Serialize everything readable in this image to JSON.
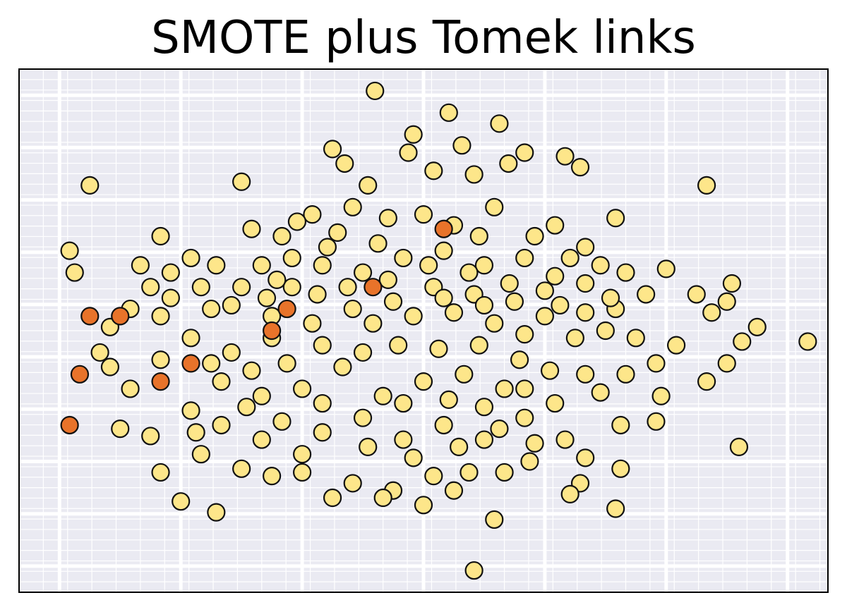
{
  "chart_data": {
    "type": "scatter",
    "title": "SMOTE plus Tomek links",
    "xlabel": "",
    "ylabel": "",
    "xlim": [
      -4.0,
      4.0
    ],
    "ylim": [
      -3.6,
      3.6
    ],
    "grid": true,
    "legend": "none",
    "colors": {
      "majority": "#fde68a",
      "minority": "#e8732a",
      "edge": "#111111",
      "background": "#eaeaf2",
      "grid_major": "#ffffff",
      "grid_minor": "#ffffff"
    },
    "series": [
      {
        "class": "majority",
        "points": [
          [
            -0.48,
            3.3
          ],
          [
            0.25,
            3.0
          ],
          [
            0.75,
            2.85
          ],
          [
            -0.1,
            2.7
          ],
          [
            0.38,
            2.55
          ],
          [
            -0.9,
            2.5
          ],
          [
            1.0,
            2.45
          ],
          [
            1.4,
            2.4
          ],
          [
            -0.78,
            2.3
          ],
          [
            -0.15,
            2.45
          ],
          [
            0.84,
            2.3
          ],
          [
            0.1,
            2.2
          ],
          [
            -0.55,
            2.0
          ],
          [
            0.5,
            2.15
          ],
          [
            1.55,
            2.25
          ],
          [
            -1.8,
            2.05
          ],
          [
            -3.3,
            2.0
          ],
          [
            2.8,
            2.0
          ],
          [
            -1.1,
            1.6
          ],
          [
            -1.4,
            1.3
          ],
          [
            -0.7,
            1.7
          ],
          [
            0.0,
            1.6
          ],
          [
            0.7,
            1.7
          ],
          [
            1.3,
            1.45
          ],
          [
            1.6,
            1.15
          ],
          [
            1.9,
            1.55
          ],
          [
            -2.6,
            1.3
          ],
          [
            -3.5,
            1.1
          ],
          [
            -3.45,
            0.8
          ],
          [
            -2.8,
            0.9
          ],
          [
            -2.7,
            0.6
          ],
          [
            -2.5,
            0.45
          ],
          [
            -2.9,
            0.3
          ],
          [
            -3.1,
            0.05
          ],
          [
            -2.6,
            0.2
          ],
          [
            -2.2,
            0.6
          ],
          [
            -1.9,
            0.35
          ],
          [
            -1.5,
            0.2
          ],
          [
            -1.3,
            0.6
          ],
          [
            -1.0,
            0.9
          ],
          [
            -0.6,
            0.8
          ],
          [
            -0.2,
            1.0
          ],
          [
            0.2,
            1.1
          ],
          [
            0.6,
            0.9
          ],
          [
            1.0,
            1.0
          ],
          [
            1.3,
            0.75
          ],
          [
            1.6,
            0.65
          ],
          [
            1.9,
            0.3
          ],
          [
            2.2,
            0.5
          ],
          [
            2.4,
            0.85
          ],
          [
            2.7,
            0.5
          ],
          [
            3.0,
            0.4
          ],
          [
            3.05,
            0.65
          ],
          [
            2.85,
            0.25
          ],
          [
            3.3,
            0.05
          ],
          [
            3.15,
            -0.15
          ],
          [
            3.0,
            -0.45
          ],
          [
            3.8,
            -0.15
          ],
          [
            2.5,
            -0.2
          ],
          [
            2.1,
            -0.1
          ],
          [
            1.8,
            0.0
          ],
          [
            1.5,
            -0.1
          ],
          [
            1.2,
            0.2
          ],
          [
            0.9,
            0.4
          ],
          [
            0.5,
            0.5
          ],
          [
            0.1,
            0.6
          ],
          [
            -0.3,
            0.4
          ],
          [
            -0.7,
            0.3
          ],
          [
            -1.1,
            0.1
          ],
          [
            -1.5,
            -0.1
          ],
          [
            -1.9,
            -0.3
          ],
          [
            -2.3,
            -0.1
          ],
          [
            -2.6,
            -0.4
          ],
          [
            -3.1,
            -0.5
          ],
          [
            -3.2,
            -0.3
          ],
          [
            -2.9,
            -0.8
          ],
          [
            -3.0,
            -1.35
          ],
          [
            -2.7,
            -1.45
          ],
          [
            -2.6,
            -1.95
          ],
          [
            -2.4,
            -2.35
          ],
          [
            -2.05,
            -2.5
          ],
          [
            -2.3,
            -1.1
          ],
          [
            -2.0,
            -1.3
          ],
          [
            -1.6,
            -1.5
          ],
          [
            -1.2,
            -1.7
          ],
          [
            -1.5,
            -2.0
          ],
          [
            -1.0,
            -1.4
          ],
          [
            -0.6,
            -1.2
          ],
          [
            -0.2,
            -1.5
          ],
          [
            0.2,
            -1.3
          ],
          [
            0.6,
            -1.5
          ],
          [
            1.0,
            -1.2
          ],
          [
            1.4,
            -1.5
          ],
          [
            1.6,
            -1.75
          ],
          [
            1.55,
            -2.1
          ],
          [
            1.95,
            -1.3
          ],
          [
            1.95,
            -1.9
          ],
          [
            2.35,
            -0.9
          ],
          [
            2.8,
            -0.7
          ],
          [
            2.3,
            -1.25
          ],
          [
            3.12,
            -1.6
          ],
          [
            1.45,
            -2.25
          ],
          [
            0.7,
            -2.6
          ],
          [
            1.9,
            -2.45
          ],
          [
            0.5,
            -3.3
          ],
          [
            -1.2,
            -1.95
          ],
          [
            -0.7,
            -2.1
          ],
          [
            -0.3,
            -2.2
          ],
          [
            0.1,
            -2.0
          ],
          [
            0.45,
            -1.95
          ],
          [
            1.05,
            -1.8
          ],
          [
            1.3,
            -1.0
          ],
          [
            0.8,
            -0.8
          ],
          [
            0.4,
            -0.6
          ],
          [
            0.0,
            -0.7
          ],
          [
            -0.4,
            -0.9
          ],
          [
            -0.8,
            -0.5
          ],
          [
            -1.2,
            -0.8
          ],
          [
            -1.6,
            -0.9
          ],
          [
            -2.0,
            -0.7
          ],
          [
            -1.8,
            -1.9
          ],
          [
            -2.2,
            -1.7
          ],
          [
            -0.9,
            -2.3
          ],
          [
            0.0,
            -2.4
          ],
          [
            0.3,
            -2.2
          ],
          [
            -0.4,
            -2.3
          ],
          [
            0.8,
            -1.95
          ],
          [
            1.1,
            -1.55
          ],
          [
            1.6,
            -0.6
          ],
          [
            2.0,
            -0.6
          ],
          [
            2.3,
            -0.45
          ],
          [
            1.75,
            -0.85
          ],
          [
            -1.3,
            1.0
          ],
          [
            -1.6,
            0.9
          ],
          [
            -2.05,
            0.9
          ],
          [
            -2.3,
            1.0
          ],
          [
            -2.5,
            0.8
          ],
          [
            -1.7,
            1.4
          ],
          [
            -1.25,
            1.5
          ],
          [
            -0.85,
            1.35
          ],
          [
            -0.35,
            1.55
          ],
          [
            0.3,
            1.45
          ],
          [
            0.55,
            1.3
          ],
          [
            1.1,
            1.3
          ],
          [
            1.45,
            1.0
          ],
          [
            1.75,
            0.9
          ],
          [
            2.0,
            0.8
          ],
          [
            1.2,
            0.55
          ],
          [
            0.85,
            0.65
          ],
          [
            0.45,
            0.8
          ],
          [
            0.05,
            0.9
          ],
          [
            -0.45,
            1.2
          ],
          [
            -0.95,
            1.15
          ],
          [
            -1.45,
            0.7
          ],
          [
            -1.8,
            0.6
          ],
          [
            -2.1,
            0.3
          ],
          [
            -0.5,
            0.1
          ],
          [
            -0.1,
            0.2
          ],
          [
            0.3,
            0.25
          ],
          [
            0.7,
            0.1
          ],
          [
            1.0,
            -0.05
          ],
          [
            1.35,
            0.35
          ],
          [
            1.6,
            0.25
          ],
          [
            1.85,
            0.45
          ],
          [
            -0.25,
            -0.2
          ],
          [
            0.15,
            -0.25
          ],
          [
            0.55,
            -0.2
          ],
          [
            0.95,
            -0.4
          ],
          [
            1.25,
            -0.55
          ],
          [
            -0.6,
            -0.3
          ],
          [
            -1.0,
            -0.2
          ],
          [
            -1.35,
            -0.45
          ],
          [
            -1.7,
            -0.55
          ],
          [
            -2.1,
            -0.45
          ],
          [
            -0.2,
            -1.0
          ],
          [
            0.25,
            -0.95
          ],
          [
            0.6,
            -1.05
          ],
          [
            1.0,
            -0.8
          ],
          [
            -1.4,
            -1.25
          ],
          [
            -1.0,
            -1.0
          ],
          [
            -0.55,
            -1.6
          ],
          [
            -0.1,
            -1.75
          ],
          [
            0.35,
            -1.6
          ],
          [
            0.75,
            -1.35
          ],
          [
            -1.75,
            -1.05
          ],
          [
            -2.25,
            -1.4
          ],
          [
            -1.55,
            0.45
          ],
          [
            -1.05,
            0.5
          ],
          [
            -0.75,
            0.6
          ],
          [
            -0.35,
            0.7
          ],
          [
            0.2,
            0.45
          ],
          [
            0.6,
            0.35
          ]
        ]
      },
      {
        "class": "minority",
        "points": [
          [
            -3.3,
            0.2
          ],
          [
            -3.0,
            0.2
          ],
          [
            -2.3,
            -0.45
          ],
          [
            -3.4,
            -0.6
          ],
          [
            -2.6,
            -0.7
          ],
          [
            -3.5,
            -1.3
          ],
          [
            -1.5,
            0.0
          ],
          [
            -1.35,
            0.3
          ],
          [
            -0.5,
            0.6
          ],
          [
            0.2,
            1.4
          ]
        ]
      }
    ]
  }
}
